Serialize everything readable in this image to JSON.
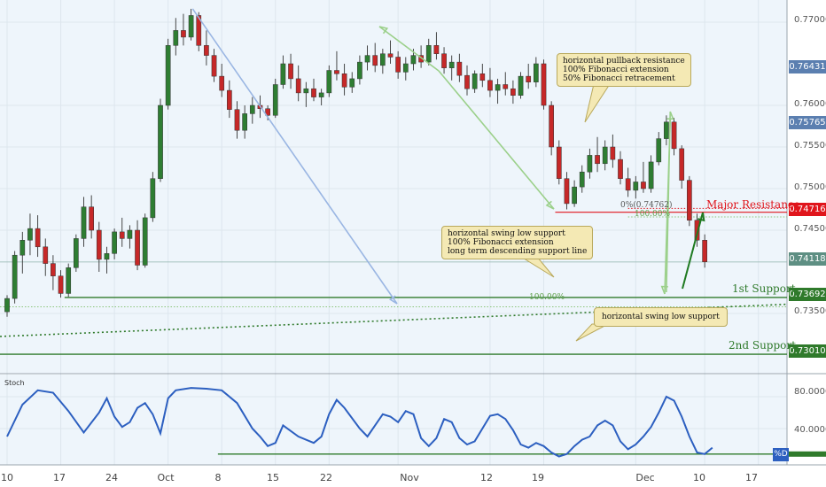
{
  "chart_data": {
    "type": "candlestick",
    "title": "",
    "price_axis": {
      "range": [
        0.729,
        0.772
      ],
      "ticks": [
        {
          "label": "0.77000",
          "value": 0.77
        },
        {
          "label": "0.76000",
          "value": 0.76
        },
        {
          "label": "0.75500",
          "value": 0.755
        },
        {
          "label": "0.75000",
          "value": 0.75
        },
        {
          "label": "0.74500",
          "value": 0.745
        },
        {
          "label": "0.73500",
          "value": 0.735
        }
      ],
      "tags": [
        {
          "label": "0.76431",
          "value": 0.76431,
          "color": "#5b7fb0"
        },
        {
          "label": "0.75765",
          "value": 0.75765,
          "color": "#5b7fb0"
        },
        {
          "label": "0.74716",
          "value": 0.74716,
          "color": "#e0151c"
        },
        {
          "label": "0.74118",
          "value": 0.74118,
          "color": "#5e8f83"
        },
        {
          "label": "0.73692",
          "value": 0.73692,
          "color": "#2f7a2b"
        },
        {
          "label": "0.73010",
          "value": 0.7301,
          "color": "#2f7a2b"
        }
      ]
    },
    "time_axis": {
      "ticks": [
        {
          "label": "10",
          "day": 0
        },
        {
          "label": "17",
          "day": 7
        },
        {
          "label": "24",
          "day": 14
        },
        {
          "label": "Oct",
          "day": 21
        },
        {
          "label": "8",
          "day": 28
        },
        {
          "label": "15",
          "day": 35
        },
        {
          "label": "22",
          "day": 42
        },
        {
          "label": "Nov",
          "day": 51
        },
        {
          "label": "12",
          "day": 63
        },
        {
          "label": "19",
          "day": 70
        },
        {
          "label": "Dec",
          "day": 82
        },
        {
          "label": "10",
          "day": 91
        },
        {
          "label": "17",
          "day": 98
        }
      ]
    },
    "candles": [
      {
        "day": 0,
        "o": 0.7352,
        "h": 0.7372,
        "l": 0.7346,
        "c": 0.7368
      },
      {
        "day": 1,
        "o": 0.7368,
        "h": 0.7425,
        "l": 0.7362,
        "c": 0.742
      },
      {
        "day": 2,
        "o": 0.742,
        "h": 0.7448,
        "l": 0.7398,
        "c": 0.7438
      },
      {
        "day": 3,
        "o": 0.7438,
        "h": 0.747,
        "l": 0.742,
        "c": 0.7452
      },
      {
        "day": 4,
        "o": 0.7452,
        "h": 0.7468,
        "l": 0.7418,
        "c": 0.743
      },
      {
        "day": 5,
        "o": 0.743,
        "h": 0.744,
        "l": 0.7395,
        "c": 0.741
      },
      {
        "day": 6,
        "o": 0.741,
        "h": 0.742,
        "l": 0.7378,
        "c": 0.7395
      },
      {
        "day": 7,
        "o": 0.7395,
        "h": 0.7402,
        "l": 0.7369,
        "c": 0.7374
      },
      {
        "day": 8,
        "o": 0.7374,
        "h": 0.741,
        "l": 0.737,
        "c": 0.7405
      },
      {
        "day": 9,
        "o": 0.7405,
        "h": 0.7445,
        "l": 0.74,
        "c": 0.744
      },
      {
        "day": 10,
        "o": 0.744,
        "h": 0.749,
        "l": 0.743,
        "c": 0.7478
      },
      {
        "day": 11,
        "o": 0.7478,
        "h": 0.7492,
        "l": 0.744,
        "c": 0.745
      },
      {
        "day": 12,
        "o": 0.745,
        "h": 0.746,
        "l": 0.74,
        "c": 0.7415
      },
      {
        "day": 13,
        "o": 0.7415,
        "h": 0.743,
        "l": 0.7398,
        "c": 0.7422
      },
      {
        "day": 14,
        "o": 0.7422,
        "h": 0.7452,
        "l": 0.7415,
        "c": 0.7448
      },
      {
        "day": 15,
        "o": 0.7448,
        "h": 0.7465,
        "l": 0.743,
        "c": 0.744
      },
      {
        "day": 16,
        "o": 0.744,
        "h": 0.7456,
        "l": 0.7428,
        "c": 0.745
      },
      {
        "day": 17,
        "o": 0.745,
        "h": 0.7462,
        "l": 0.7402,
        "c": 0.7408
      },
      {
        "day": 18,
        "o": 0.7408,
        "h": 0.747,
        "l": 0.7405,
        "c": 0.7465
      },
      {
        "day": 19,
        "o": 0.7465,
        "h": 0.752,
        "l": 0.746,
        "c": 0.7512
      },
      {
        "day": 20,
        "o": 0.7512,
        "h": 0.7608,
        "l": 0.7508,
        "c": 0.76
      },
      {
        "day": 21,
        "o": 0.76,
        "h": 0.768,
        "l": 0.7595,
        "c": 0.7672
      },
      {
        "day": 22,
        "o": 0.7672,
        "h": 0.7705,
        "l": 0.766,
        "c": 0.769
      },
      {
        "day": 23,
        "o": 0.769,
        "h": 0.771,
        "l": 0.7672,
        "c": 0.7682
      },
      {
        "day": 24,
        "o": 0.7682,
        "h": 0.7716,
        "l": 0.7678,
        "c": 0.7708
      },
      {
        "day": 25,
        "o": 0.7708,
        "h": 0.7712,
        "l": 0.7665,
        "c": 0.7672
      },
      {
        "day": 26,
        "o": 0.7672,
        "h": 0.769,
        "l": 0.7648,
        "c": 0.766
      },
      {
        "day": 27,
        "o": 0.766,
        "h": 0.7668,
        "l": 0.7628,
        "c": 0.7635
      },
      {
        "day": 28,
        "o": 0.7635,
        "h": 0.765,
        "l": 0.761,
        "c": 0.7618
      },
      {
        "day": 29,
        "o": 0.7618,
        "h": 0.763,
        "l": 0.7585,
        "c": 0.7595
      },
      {
        "day": 30,
        "o": 0.7595,
        "h": 0.7605,
        "l": 0.756,
        "c": 0.757
      },
      {
        "day": 31,
        "o": 0.757,
        "h": 0.76,
        "l": 0.756,
        "c": 0.759
      },
      {
        "day": 32,
        "o": 0.759,
        "h": 0.761,
        "l": 0.7578,
        "c": 0.76
      },
      {
        "day": 33,
        "o": 0.76,
        "h": 0.7612,
        "l": 0.7585,
        "c": 0.7596
      },
      {
        "day": 34,
        "o": 0.7596,
        "h": 0.76,
        "l": 0.7582,
        "c": 0.7588
      },
      {
        "day": 35,
        "o": 0.7588,
        "h": 0.7632,
        "l": 0.7585,
        "c": 0.7625
      },
      {
        "day": 36,
        "o": 0.7625,
        "h": 0.766,
        "l": 0.762,
        "c": 0.765
      },
      {
        "day": 37,
        "o": 0.765,
        "h": 0.7662,
        "l": 0.762,
        "c": 0.7632
      },
      {
        "day": 38,
        "o": 0.7632,
        "h": 0.7648,
        "l": 0.7605,
        "c": 0.7615
      },
      {
        "day": 39,
        "o": 0.7615,
        "h": 0.7628,
        "l": 0.7598,
        "c": 0.762
      },
      {
        "day": 40,
        "o": 0.762,
        "h": 0.7632,
        "l": 0.7605,
        "c": 0.761
      },
      {
        "day": 41,
        "o": 0.761,
        "h": 0.762,
        "l": 0.76,
        "c": 0.7615
      },
      {
        "day": 42,
        "o": 0.7615,
        "h": 0.7648,
        "l": 0.761,
        "c": 0.7642
      },
      {
        "day": 43,
        "o": 0.7642,
        "h": 0.7665,
        "l": 0.763,
        "c": 0.7638
      },
      {
        "day": 44,
        "o": 0.7638,
        "h": 0.765,
        "l": 0.7612,
        "c": 0.7622
      },
      {
        "day": 45,
        "o": 0.7622,
        "h": 0.764,
        "l": 0.7615,
        "c": 0.7632
      },
      {
        "day": 46,
        "o": 0.7632,
        "h": 0.766,
        "l": 0.7625,
        "c": 0.7652
      },
      {
        "day": 47,
        "o": 0.7652,
        "h": 0.7672,
        "l": 0.7642,
        "c": 0.766
      },
      {
        "day": 48,
        "o": 0.766,
        "h": 0.7675,
        "l": 0.764,
        "c": 0.7648
      },
      {
        "day": 49,
        "o": 0.7648,
        "h": 0.7668,
        "l": 0.7638,
        "c": 0.7662
      },
      {
        "day": 50,
        "o": 0.7662,
        "h": 0.7678,
        "l": 0.765,
        "c": 0.7658
      },
      {
        "day": 51,
        "o": 0.7658,
        "h": 0.7665,
        "l": 0.7632,
        "c": 0.764
      },
      {
        "day": 52,
        "o": 0.764,
        "h": 0.7658,
        "l": 0.763,
        "c": 0.765
      },
      {
        "day": 53,
        "o": 0.765,
        "h": 0.7668,
        "l": 0.7642,
        "c": 0.766
      },
      {
        "day": 54,
        "o": 0.766,
        "h": 0.7672,
        "l": 0.7645,
        "c": 0.7652
      },
      {
        "day": 55,
        "o": 0.7652,
        "h": 0.768,
        "l": 0.7648,
        "c": 0.7672
      },
      {
        "day": 56,
        "o": 0.7672,
        "h": 0.7688,
        "l": 0.7655,
        "c": 0.7662
      },
      {
        "day": 57,
        "o": 0.7662,
        "h": 0.767,
        "l": 0.7638,
        "c": 0.7645
      },
      {
        "day": 58,
        "o": 0.7645,
        "h": 0.766,
        "l": 0.763,
        "c": 0.7652
      },
      {
        "day": 59,
        "o": 0.7652,
        "h": 0.7662,
        "l": 0.7628,
        "c": 0.7636
      },
      {
        "day": 60,
        "o": 0.7636,
        "h": 0.7648,
        "l": 0.7612,
        "c": 0.762
      },
      {
        "day": 61,
        "o": 0.762,
        "h": 0.7642,
        "l": 0.7615,
        "c": 0.7638
      },
      {
        "day": 62,
        "o": 0.7638,
        "h": 0.765,
        "l": 0.7622,
        "c": 0.763
      },
      {
        "day": 63,
        "o": 0.763,
        "h": 0.7645,
        "l": 0.761,
        "c": 0.7618
      },
      {
        "day": 64,
        "o": 0.7618,
        "h": 0.7632,
        "l": 0.7602,
        "c": 0.7625
      },
      {
        "day": 65,
        "o": 0.7625,
        "h": 0.764,
        "l": 0.7612,
        "c": 0.762
      },
      {
        "day": 66,
        "o": 0.762,
        "h": 0.763,
        "l": 0.7602,
        "c": 0.7612
      },
      {
        "day": 67,
        "o": 0.7612,
        "h": 0.764,
        "l": 0.7608,
        "c": 0.7635
      },
      {
        "day": 68,
        "o": 0.7635,
        "h": 0.765,
        "l": 0.762,
        "c": 0.7628
      },
      {
        "day": 69,
        "o": 0.7628,
        "h": 0.7658,
        "l": 0.7622,
        "c": 0.765
      },
      {
        "day": 70,
        "o": 0.765,
        "h": 0.7655,
        "l": 0.7595,
        "c": 0.76
      },
      {
        "day": 71,
        "o": 0.76,
        "h": 0.7605,
        "l": 0.754,
        "c": 0.755
      },
      {
        "day": 72,
        "o": 0.755,
        "h": 0.7558,
        "l": 0.7505,
        "c": 0.7512
      },
      {
        "day": 73,
        "o": 0.7512,
        "h": 0.752,
        "l": 0.7475,
        "c": 0.7482
      },
      {
        "day": 74,
        "o": 0.7482,
        "h": 0.751,
        "l": 0.7478,
        "c": 0.7502
      },
      {
        "day": 75,
        "o": 0.7502,
        "h": 0.7528,
        "l": 0.7495,
        "c": 0.752
      },
      {
        "day": 76,
        "o": 0.752,
        "h": 0.7548,
        "l": 0.7512,
        "c": 0.754
      },
      {
        "day": 77,
        "o": 0.754,
        "h": 0.7562,
        "l": 0.752,
        "c": 0.753
      },
      {
        "day": 78,
        "o": 0.753,
        "h": 0.7558,
        "l": 0.7522,
        "c": 0.755
      },
      {
        "day": 79,
        "o": 0.755,
        "h": 0.7565,
        "l": 0.7525,
        "c": 0.7535
      },
      {
        "day": 80,
        "o": 0.7535,
        "h": 0.7545,
        "l": 0.7505,
        "c": 0.7512
      },
      {
        "day": 81,
        "o": 0.7512,
        "h": 0.7525,
        "l": 0.749,
        "c": 0.7498
      },
      {
        "day": 82,
        "o": 0.7498,
        "h": 0.7515,
        "l": 0.7488,
        "c": 0.7508
      },
      {
        "day": 83,
        "o": 0.7508,
        "h": 0.7532,
        "l": 0.7495,
        "c": 0.75
      },
      {
        "day": 84,
        "o": 0.75,
        "h": 0.754,
        "l": 0.7495,
        "c": 0.7532
      },
      {
        "day": 85,
        "o": 0.7532,
        "h": 0.7568,
        "l": 0.7528,
        "c": 0.756
      },
      {
        "day": 86,
        "o": 0.756,
        "h": 0.7588,
        "l": 0.7552,
        "c": 0.758
      },
      {
        "day": 87,
        "o": 0.758,
        "h": 0.7585,
        "l": 0.754,
        "c": 0.7548
      },
      {
        "day": 88,
        "o": 0.7548,
        "h": 0.7552,
        "l": 0.75,
        "c": 0.751
      },
      {
        "day": 89,
        "o": 0.751,
        "h": 0.7515,
        "l": 0.7455,
        "c": 0.7462
      },
      {
        "day": 90,
        "o": 0.7462,
        "h": 0.747,
        "l": 0.743,
        "c": 0.7438
      },
      {
        "day": 91,
        "o": 0.7438,
        "h": 0.7445,
        "l": 0.7405,
        "c": 0.7412
      }
    ],
    "levels": [
      {
        "label": "Major Resistance",
        "value": 0.74716,
        "color": "#e0151c",
        "style": "solid+dotted"
      },
      {
        "label": "1st Support",
        "value": 0.73692,
        "color": "#2f7a2b",
        "style": "solid"
      },
      {
        "label": "2nd Support",
        "value": 0.7301,
        "color": "#2f7a2b",
        "style": "solid"
      }
    ],
    "fib_labels": [
      {
        "label": "0%(0.74762)",
        "value": 0.74762
      },
      {
        "label": "100.00%",
        "value": 0.7466
      },
      {
        "label": "100.00%",
        "value": 0.736
      }
    ],
    "annotations": [
      {
        "lines": [
          "horizontal pullback resistance",
          "100% Fibonacci extension",
          "50% Fibonacci retracement"
        ]
      },
      {
        "lines": [
          "horizontal swing low support",
          "100% Fibonacci extension",
          "long term descending support line"
        ]
      },
      {
        "lines": [
          "horizontal swing low support"
        ]
      }
    ],
    "oscillator": {
      "label": "Stoch",
      "series_label": "%D",
      "range": [
        0,
        100
      ],
      "ticks": [
        {
          "label": "80.0000",
          "value": 80
        },
        {
          "label": "40.0000",
          "value": 40
        }
      ],
      "values": [
        {
          "day": 0,
          "v": 30
        },
        {
          "day": 2,
          "v": 70
        },
        {
          "day": 4,
          "v": 88
        },
        {
          "day": 6,
          "v": 85
        },
        {
          "day": 8,
          "v": 62
        },
        {
          "day": 10,
          "v": 35
        },
        {
          "day": 12,
          "v": 60
        },
        {
          "day": 13,
          "v": 78
        },
        {
          "day": 14,
          "v": 55
        },
        {
          "day": 15,
          "v": 42
        },
        {
          "day": 16,
          "v": 48
        },
        {
          "day": 17,
          "v": 66
        },
        {
          "day": 18,
          "v": 72
        },
        {
          "day": 19,
          "v": 58
        },
        {
          "day": 20,
          "v": 34
        },
        {
          "day": 21,
          "v": 78
        },
        {
          "day": 22,
          "v": 88
        },
        {
          "day": 24,
          "v": 91
        },
        {
          "day": 26,
          "v": 90
        },
        {
          "day": 28,
          "v": 88
        },
        {
          "day": 30,
          "v": 72
        },
        {
          "day": 32,
          "v": 40
        },
        {
          "day": 33,
          "v": 30
        },
        {
          "day": 34,
          "v": 18
        },
        {
          "day": 35,
          "v": 22
        },
        {
          "day": 36,
          "v": 44
        },
        {
          "day": 38,
          "v": 30
        },
        {
          "day": 40,
          "v": 22
        },
        {
          "day": 41,
          "v": 30
        },
        {
          "day": 42,
          "v": 58
        },
        {
          "day": 43,
          "v": 76
        },
        {
          "day": 44,
          "v": 66
        },
        {
          "day": 46,
          "v": 40
        },
        {
          "day": 47,
          "v": 30
        },
        {
          "day": 48,
          "v": 44
        },
        {
          "day": 49,
          "v": 58
        },
        {
          "day": 50,
          "v": 55
        },
        {
          "day": 51,
          "v": 48
        },
        {
          "day": 52,
          "v": 62
        },
        {
          "day": 53,
          "v": 58
        },
        {
          "day": 54,
          "v": 28
        },
        {
          "day": 55,
          "v": 18
        },
        {
          "day": 56,
          "v": 28
        },
        {
          "day": 57,
          "v": 52
        },
        {
          "day": 58,
          "v": 48
        },
        {
          "day": 59,
          "v": 28
        },
        {
          "day": 60,
          "v": 20
        },
        {
          "day": 61,
          "v": 24
        },
        {
          "day": 62,
          "v": 40
        },
        {
          "day": 63,
          "v": 56
        },
        {
          "day": 64,
          "v": 58
        },
        {
          "day": 65,
          "v": 52
        },
        {
          "day": 66,
          "v": 38
        },
        {
          "day": 67,
          "v": 20
        },
        {
          "day": 68,
          "v": 16
        },
        {
          "day": 69,
          "v": 22
        },
        {
          "day": 70,
          "v": 18
        },
        {
          "day": 71,
          "v": 10
        },
        {
          "day": 72,
          "v": 5
        },
        {
          "day": 73,
          "v": 8
        },
        {
          "day": 74,
          "v": 18
        },
        {
          "day": 75,
          "v": 26
        },
        {
          "day": 76,
          "v": 30
        },
        {
          "day": 77,
          "v": 44
        },
        {
          "day": 78,
          "v": 50
        },
        {
          "day": 79,
          "v": 44
        },
        {
          "day": 80,
          "v": 24
        },
        {
          "day": 81,
          "v": 14
        },
        {
          "day": 82,
          "v": 20
        },
        {
          "day": 83,
          "v": 30
        },
        {
          "day": 84,
          "v": 42
        },
        {
          "day": 85,
          "v": 60
        },
        {
          "day": 86,
          "v": 80
        },
        {
          "day": 87,
          "v": 75
        },
        {
          "day": 88,
          "v": 55
        },
        {
          "day": 89,
          "v": 30
        },
        {
          "day": 90,
          "v": 10
        },
        {
          "day": 91,
          "v": 8
        },
        {
          "day": 92,
          "v": 16
        }
      ],
      "floor_value": 8
    }
  }
}
